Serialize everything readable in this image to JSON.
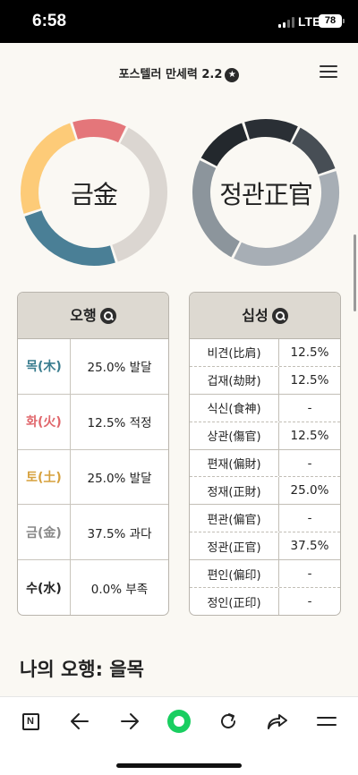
{
  "status_bar": {
    "time": "6:58",
    "network": "LTE",
    "battery": "78"
  },
  "header": {
    "title": "포스텔러 만세력 2.2",
    "badge_icon": "star-badge-icon",
    "menu_icon": "hamburger-menu-icon"
  },
  "donuts": {
    "left": {
      "label": "금金",
      "segments": [
        {
          "color": "#e4767a",
          "fraction": 0.125
        },
        {
          "color": "#dbd6d1",
          "fraction": 0.375
        },
        {
          "color": "#4a7f96",
          "fraction": 0.25
        },
        {
          "color": "#fdcb78",
          "fraction": 0.25
        }
      ]
    },
    "right": {
      "label": "정관正官",
      "segments": [
        {
          "color": "#2a2f35",
          "fraction": 0.125
        },
        {
          "color": "#474e55",
          "fraction": 0.125
        },
        {
          "color": "#a7aeb5",
          "fraction": 0.375
        },
        {
          "color": "#8c959c",
          "fraction": 0.25
        },
        {
          "color": "#23282d",
          "fraction": 0.125
        }
      ]
    }
  },
  "ohaeng_table": {
    "title": "오행",
    "rows": [
      {
        "element": "목(木)",
        "value": "25.0% 발달",
        "color": "#3a7d8f"
      },
      {
        "element": "화(火)",
        "value": "12.5% 적정",
        "color": "#e0666b"
      },
      {
        "element": "토(土)",
        "value": "25.0% 발달",
        "color": "#d6a13e"
      },
      {
        "element": "금(金)",
        "value": "37.5% 과다",
        "color": "#888888"
      },
      {
        "element": "수(水)",
        "value": "0.0% 부족",
        "color": "#222222"
      }
    ]
  },
  "sipseong_table": {
    "title": "십성",
    "rows": [
      {
        "name": "비견(比肩)",
        "value": "12.5%"
      },
      {
        "name": "겁재(劫財)",
        "value": "12.5%"
      },
      {
        "name": "식신(食神)",
        "value": "-"
      },
      {
        "name": "상관(傷官)",
        "value": "12.5%"
      },
      {
        "name": "편재(偏財)",
        "value": "-"
      },
      {
        "name": "정재(正財)",
        "value": "25.0%"
      },
      {
        "name": "편관(偏官)",
        "value": "-"
      },
      {
        "name": "정관(正官)",
        "value": "37.5%"
      },
      {
        "name": "편인(偏印)",
        "value": "-"
      },
      {
        "name": "정인(正印)",
        "value": "-"
      }
    ]
  },
  "section": {
    "title": "나의 오행: 을목"
  },
  "toolbar": {
    "n_label": "N"
  }
}
